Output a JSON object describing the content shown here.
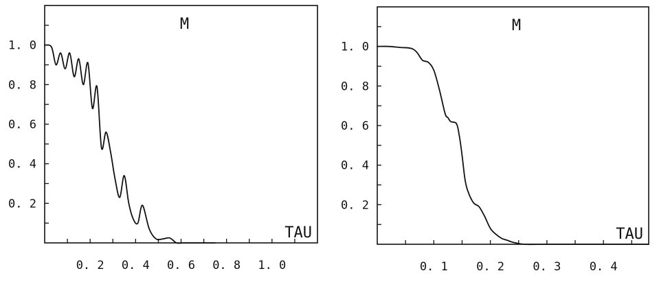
{
  "chart_data": [
    {
      "type": "line",
      "title": "M",
      "xlabel": "TAU",
      "ylabel": "",
      "xlim": [
        0,
        1.2
      ],
      "ylim": [
        0,
        1.2
      ],
      "x_ticks": [
        0.2,
        0.4,
        0.6,
        0.8,
        1.0
      ],
      "x_tick_labels": [
        "0. 2",
        "0. 4",
        "0. 6",
        "0. 8",
        "1. 0"
      ],
      "y_ticks": [
        0.2,
        0.4,
        0.6,
        0.8,
        1.0
      ],
      "y_tick_labels": [
        "0. 2",
        "0. 4",
        "0. 6",
        "0. 8",
        "1. 0"
      ],
      "grid": false,
      "series": [
        {
          "x": [
            0,
            0.03,
            0.05,
            0.07,
            0.09,
            0.11,
            0.13,
            0.15,
            0.17,
            0.19,
            0.21,
            0.23,
            0.25,
            0.27,
            0.29,
            0.31,
            0.33,
            0.35,
            0.37,
            0.39,
            0.41,
            0.43,
            0.46,
            0.49,
            0.52,
            0.55,
            0.58,
            0.61,
            0.64,
            0.67,
            0.69,
            0.72,
            0.75
          ],
          "y": [
            1.0,
            0.99,
            0.9,
            0.96,
            0.88,
            0.96,
            0.84,
            0.93,
            0.8,
            0.91,
            0.68,
            0.79,
            0.48,
            0.56,
            0.46,
            0.32,
            0.23,
            0.34,
            0.2,
            0.12,
            0.1,
            0.19,
            0.07,
            0.02,
            0.02,
            0.025,
            0.0,
            0.0,
            0.0,
            0.0,
            0.0,
            0.0,
            0.0
          ]
        }
      ]
    },
    {
      "type": "line",
      "title": "M",
      "xlabel": "TAU",
      "ylabel": "",
      "xlim": [
        0,
        0.48
      ],
      "ylim": [
        0,
        1.2
      ],
      "x_ticks": [
        0.1,
        0.2,
        0.3,
        0.4
      ],
      "x_tick_labels": [
        "0. 1",
        "0. 2",
        "0. 3",
        "0. 4"
      ],
      "y_ticks": [
        0.2,
        0.4,
        0.6,
        0.8,
        1.0
      ],
      "y_tick_labels": [
        "0. 2",
        "0. 4",
        "0. 6",
        "0. 8",
        "1. 0"
      ],
      "grid": false,
      "series": [
        {
          "x": [
            0,
            0.02,
            0.04,
            0.06,
            0.07,
            0.08,
            0.09,
            0.1,
            0.11,
            0.12,
            0.125,
            0.13,
            0.14,
            0.145,
            0.15,
            0.155,
            0.16,
            0.17,
            0.18,
            0.19,
            0.2,
            0.21,
            0.22,
            0.23,
            0.24,
            0.26,
            0.3,
            0.35,
            0.4,
            0.48
          ],
          "y": [
            1.0,
            1.0,
            0.995,
            0.99,
            0.97,
            0.93,
            0.92,
            0.88,
            0.78,
            0.66,
            0.64,
            0.62,
            0.61,
            0.55,
            0.45,
            0.33,
            0.27,
            0.21,
            0.19,
            0.14,
            0.08,
            0.05,
            0.03,
            0.02,
            0.01,
            0.0,
            0.0,
            0.0,
            0.0,
            0.0
          ]
        }
      ]
    }
  ]
}
